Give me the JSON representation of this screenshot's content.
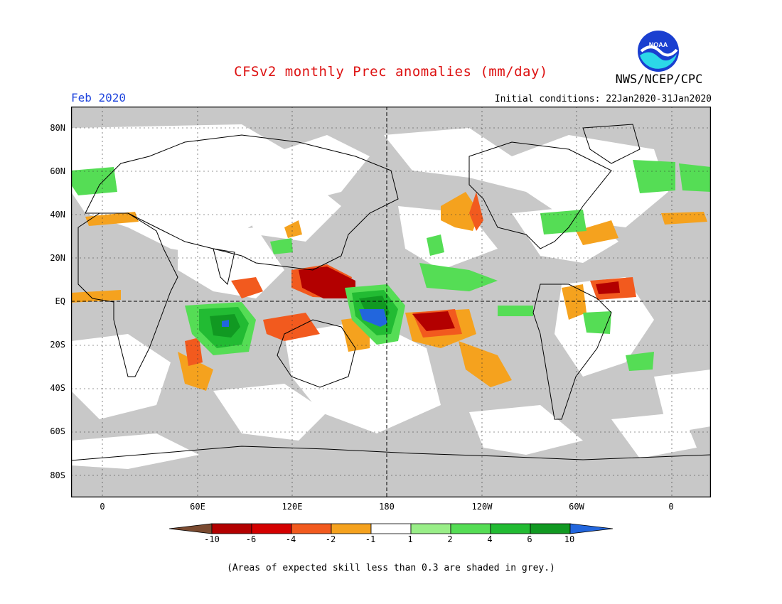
{
  "header": {
    "title": "CFSv2 monthly Prec anomalies (mm/day)",
    "agency": "NWS/NCEP/CPC",
    "month": "Feb 2020",
    "initial_conditions": "Initial conditions: 22Jan2020-31Jan2020",
    "logo_text": "NOAA"
  },
  "map": {
    "lat_labels": [
      "80N",
      "60N",
      "40N",
      "20N",
      "EQ",
      "20S",
      "40S",
      "60S",
      "80S"
    ],
    "lon_labels": [
      "0",
      "60E",
      "120E",
      "180",
      "120W",
      "60W",
      "0"
    ],
    "colors": {
      "skill_grey": "#c8c8c8",
      "brown": "#7a4a30",
      "dark_red": "#b30000",
      "red": "#d40000",
      "orange_red": "#f25a1e",
      "orange": "#f5a21e",
      "light_green": "#99ee88",
      "green": "#55dd55",
      "med_green": "#22bb33",
      "dark_green": "#119922",
      "blue": "#2266dd"
    }
  },
  "colorbar": {
    "labels": [
      "-10",
      "-6",
      "-4",
      "-2",
      "-1",
      "1",
      "2",
      "4",
      "6",
      "10"
    ],
    "colors": [
      "#7a4a30",
      "#b30000",
      "#d40000",
      "#f25a1e",
      "#f5a21e",
      "#ffffff",
      "#99ee88",
      "#55dd55",
      "#22bb33",
      "#119922",
      "#2266dd"
    ]
  },
  "footer": {
    "note": "(Areas of expected skill less than 0.3 are shaded in grey.)"
  }
}
